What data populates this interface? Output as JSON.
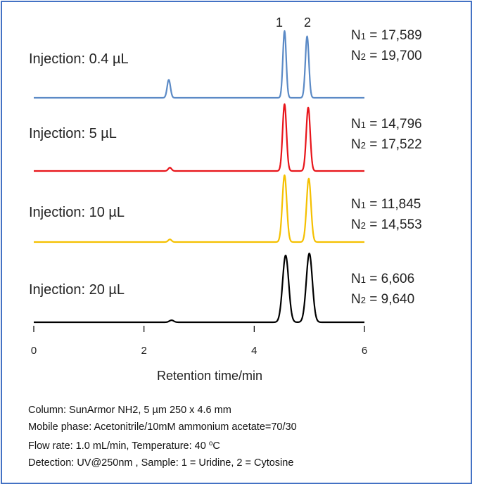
{
  "chart_data": {
    "type": "line",
    "xlabel": "Retention time/min",
    "xlim": [
      0,
      6
    ],
    "xticks": [
      "0",
      "2",
      "4",
      "6"
    ],
    "peak_labels": [
      "1",
      "2"
    ],
    "series": [
      {
        "name": "Injection: 0.4 µL",
        "color": "#5b8ac6",
        "n1_prefix": "N",
        "n1_sub": "1",
        "n1_value": "= 17,589",
        "n2_prefix": "N",
        "n2_sub": "2",
        "n2_value": "= 19,700",
        "peaks": [
          {
            "x": 2.45,
            "height": 0.27,
            "width": 0.03
          },
          {
            "x": 4.55,
            "height": 1.0,
            "width": 0.03
          },
          {
            "x": 4.96,
            "height": 0.92,
            "width": 0.032
          }
        ]
      },
      {
        "name": "Injection: 5 µL",
        "color": "#e8141a",
        "n1_prefix": "N",
        "n1_sub": "1",
        "n1_value": "= 14,796",
        "n2_prefix": "N",
        "n2_sub": "2",
        "n2_value": "= 17,522",
        "peaks": [
          {
            "x": 2.47,
            "height": 0.05,
            "width": 0.03
          },
          {
            "x": 4.55,
            "height": 1.0,
            "width": 0.035
          },
          {
            "x": 4.98,
            "height": 0.95,
            "width": 0.036
          }
        ]
      },
      {
        "name": "Injection: 10 µL",
        "color": "#f5c000",
        "n1_prefix": "N",
        "n1_sub": "1",
        "n1_value": "= 11,845",
        "n2_prefix": "N",
        "n2_sub": "2",
        "n2_value": "= 14,553",
        "peaks": [
          {
            "x": 2.47,
            "height": 0.04,
            "width": 0.03
          },
          {
            "x": 4.55,
            "height": 1.0,
            "width": 0.04
          },
          {
            "x": 4.99,
            "height": 0.95,
            "width": 0.04
          }
        ]
      },
      {
        "name": "Injection: 20 µL",
        "color": "#000000",
        "n1_prefix": "N",
        "n1_sub": "1",
        "n1_value": "= 6,606",
        "n2_prefix": "N",
        "n2_sub": "2",
        "n2_value": "= 9,640",
        "peaks": [
          {
            "x": 2.5,
            "height": 0.03,
            "width": 0.04
          },
          {
            "x": 4.57,
            "height": 1.0,
            "width": 0.055
          },
          {
            "x": 5.0,
            "height": 1.03,
            "width": 0.055
          }
        ]
      }
    ]
  },
  "notes": {
    "line1": "Column: SunArmor NH2, 5 µm 250 x 4.6 mm",
    "line2": "Mobile phase: Acetonitrile/10mM ammonium acetate=70/30",
    "line3_pre": "Flow rate: 1.0 mL/min, Temperature: 40 ",
    "line3_sup": "o",
    "line3_post": "C",
    "line4": "Detection: UV@250nm , Sample: 1 = Uridine, 2 = Cytosine"
  }
}
